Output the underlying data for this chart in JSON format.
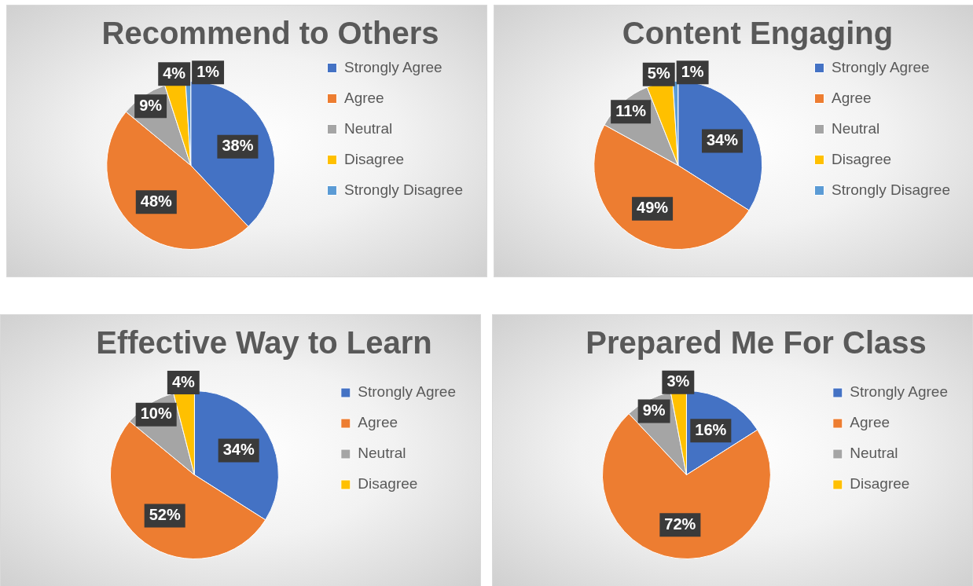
{
  "chart_data": [
    {
      "type": "pie",
      "title": "Recommend to Others",
      "categories": [
        "Strongly Agree",
        "Agree",
        "Neutral",
        "Disagree",
        "Strongly Disagree"
      ],
      "values": [
        38,
        48,
        9,
        4,
        1
      ],
      "colors": [
        "#4472c4",
        "#ed7d31",
        "#a5a5a5",
        "#ffc000",
        "#5b9bd5"
      ],
      "value_labels": [
        "38%",
        "48%",
        "9%",
        "4%",
        "1%"
      ],
      "legend": "right"
    },
    {
      "type": "pie",
      "title": "Content Engaging",
      "categories": [
        "Strongly Agree",
        "Agree",
        "Neutral",
        "Disagree",
        "Strongly Disagree"
      ],
      "values": [
        34,
        49,
        11,
        5,
        1
      ],
      "colors": [
        "#4472c4",
        "#ed7d31",
        "#a5a5a5",
        "#ffc000",
        "#5b9bd5"
      ],
      "value_labels": [
        "34%",
        "49%",
        "11%",
        "5%",
        "1%"
      ],
      "legend": "right"
    },
    {
      "type": "pie",
      "title": "Effective Way to Learn",
      "categories": [
        "Strongly Agree",
        "Agree",
        "Neutral",
        "Disagree"
      ],
      "values": [
        34,
        52,
        10,
        4
      ],
      "colors": [
        "#4472c4",
        "#ed7d31",
        "#a5a5a5",
        "#ffc000"
      ],
      "value_labels": [
        "34%",
        "52%",
        "10%",
        "4%"
      ],
      "legend": "right"
    },
    {
      "type": "pie",
      "title": "Prepared Me For Class",
      "categories": [
        "Strongly Agree",
        "Agree",
        "Neutral",
        "Disagree"
      ],
      "values": [
        16,
        72,
        9,
        3
      ],
      "colors": [
        "#4472c4",
        "#ed7d31",
        "#a5a5a5",
        "#ffc000"
      ],
      "value_labels": [
        "16%",
        "72%",
        "9%",
        "3%"
      ],
      "legend": "right"
    }
  ]
}
